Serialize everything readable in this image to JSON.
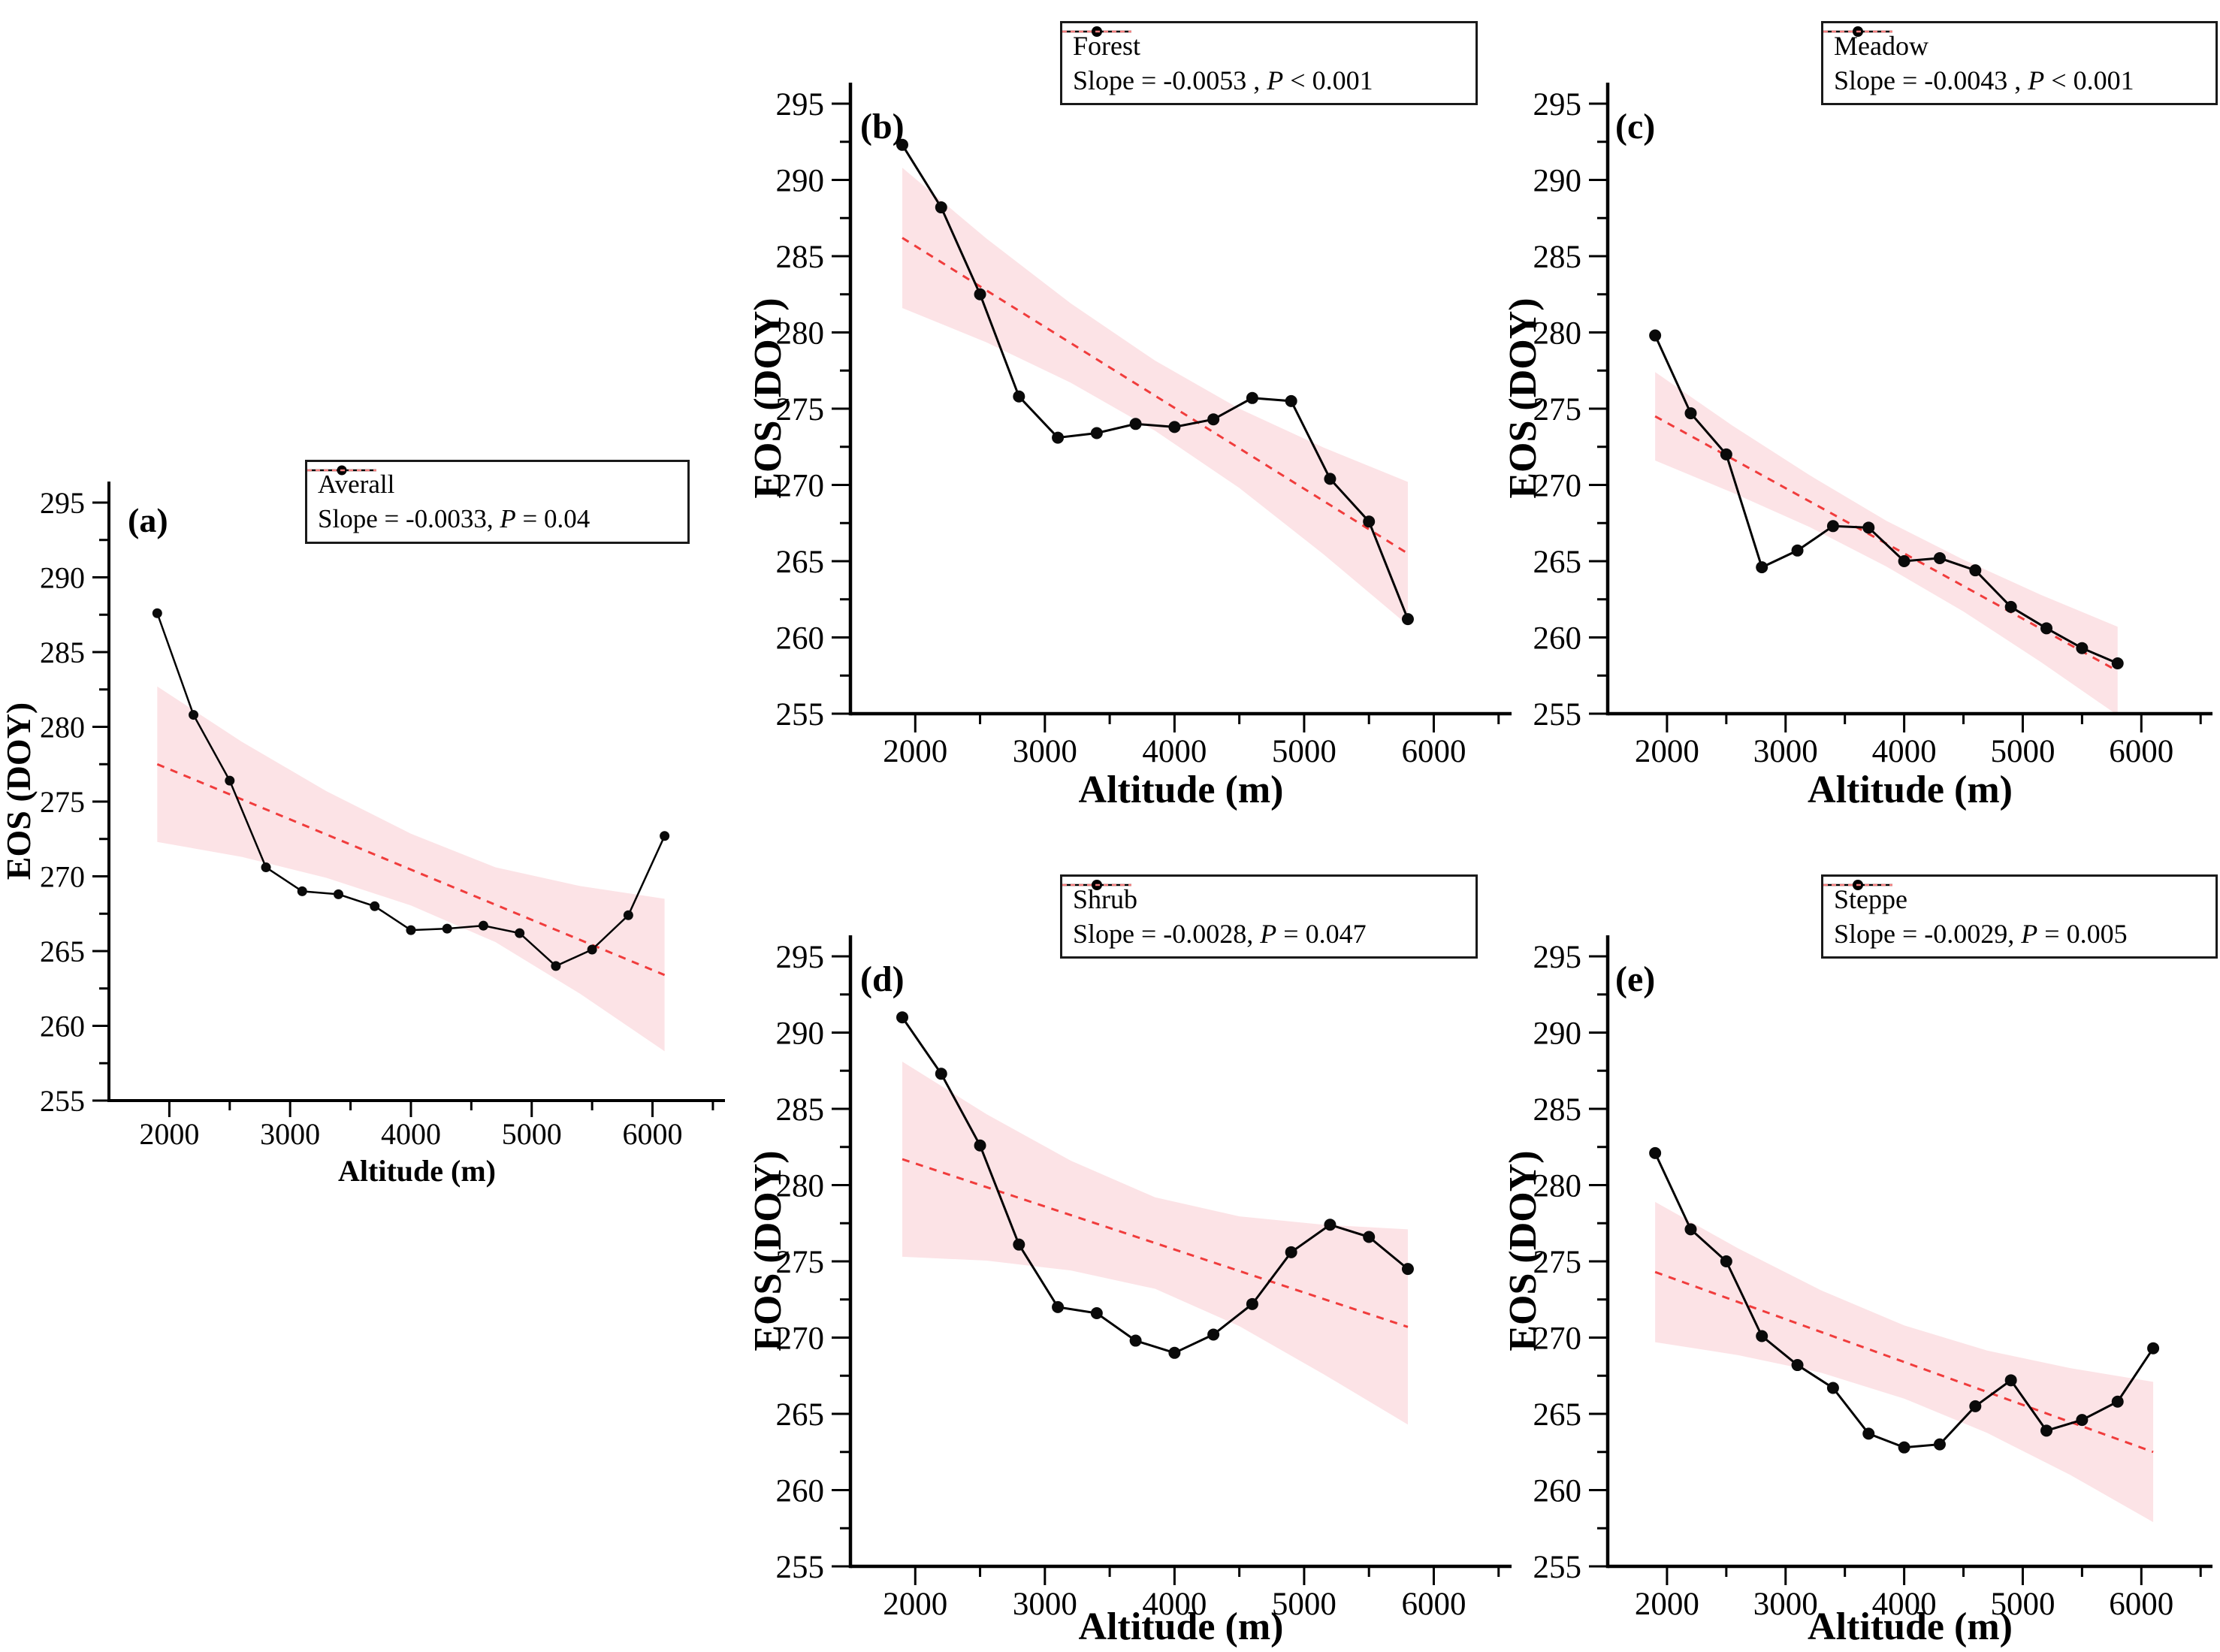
{
  "figure": {
    "background": "#ffffff",
    "series_color": "#000000",
    "trend_color": "#f03c3c",
    "band_color": "#fce3e6",
    "x_range": [
      1500,
      6600
    ],
    "y_range": [
      255,
      295
    ],
    "x_major_ticks": [
      2000,
      3000,
      4000,
      5000,
      6000
    ],
    "x_minor_ticks": [
      2500,
      3500,
      4500,
      5500,
      6500
    ],
    "y_major_ticks": [
      255,
      260,
      265,
      270,
      275,
      280,
      285,
      290,
      295
    ],
    "y_minor_ticks": [
      257.5,
      262.5,
      267.5,
      272.5,
      277.5,
      282.5,
      287.5,
      292.5
    ],
    "grid": false,
    "legend_position": "top-right"
  },
  "chart_data": [
    {
      "type": "line",
      "panel_label": "(a)",
      "series_name": "Averall",
      "legend_slope_prefix": "Slope = -0.0033, ",
      "legend_p": "P",
      "legend_p_suffix": " = 0.04",
      "xlabel": "Altitude (m)",
      "ylabel": "EOS (DOY)",
      "x": [
        1900,
        2200,
        2500,
        2800,
        3100,
        3400,
        3700,
        4000,
        4300,
        4600,
        4900,
        5200,
        5500,
        5800,
        6100
      ],
      "y": [
        287.6,
        280.8,
        276.4,
        270.6,
        269.0,
        268.8,
        268.0,
        266.4,
        266.5,
        266.7,
        266.2,
        264.0,
        265.1,
        267.4,
        272.7
      ],
      "trend": {
        "x": [
          1900,
          6100
        ],
        "y": [
          277.5,
          263.4
        ]
      },
      "band": {
        "x": [
          1900,
          2600,
          3300,
          4000,
          4700,
          5400,
          6100
        ],
        "upper": [
          282.7,
          279.0,
          275.7,
          272.85,
          270.6,
          269.35,
          268.5
        ],
        "lower": [
          272.3,
          271.3,
          269.9,
          268.05,
          265.6,
          262.15,
          258.3
        ]
      }
    },
    {
      "type": "line",
      "panel_label": "(b)",
      "series_name": "Forest",
      "legend_slope_prefix": "Slope = -0.0053 , ",
      "legend_p": "P",
      "legend_p_suffix": " < 0.001",
      "xlabel": "Altitude (m)",
      "ylabel": "EOS (DOY)",
      "x": [
        1900,
        2200,
        2500,
        2800,
        3100,
        3400,
        3700,
        4000,
        4300,
        4600,
        4900,
        5200,
        5500,
        5800
      ],
      "y": [
        292.3,
        288.2,
        282.5,
        275.8,
        273.1,
        273.4,
        274.0,
        273.8,
        274.3,
        275.7,
        275.5,
        270.4,
        267.6,
        261.2
      ],
      "trend": {
        "x": [
          1900,
          5800
        ],
        "y": [
          286.2,
          265.5
        ]
      },
      "band": {
        "x": [
          1900,
          2550,
          3200,
          3850,
          4500,
          5150,
          5800
        ],
        "upper": [
          290.8,
          286.15,
          281.9,
          278.15,
          275.0,
          272.45,
          270.2
        ],
        "lower": [
          281.6,
          279.35,
          276.7,
          273.55,
          269.8,
          265.45,
          260.8
        ]
      }
    },
    {
      "type": "line",
      "panel_label": "(c)",
      "series_name": "Meadow",
      "legend_slope_prefix": "Slope = -0.0043 , ",
      "legend_p": "P",
      "legend_p_suffix": " < 0.001",
      "xlabel": "Altitude (m)",
      "ylabel": "EOS (DOY)",
      "x": [
        1900,
        2200,
        2500,
        2800,
        3100,
        3400,
        3700,
        4000,
        4300,
        4600,
        4900,
        5200,
        5500,
        5800
      ],
      "y": [
        279.8,
        274.7,
        272.0,
        264.6,
        265.7,
        267.3,
        267.2,
        265.0,
        265.2,
        264.4,
        262.0,
        260.6,
        259.3,
        258.3
      ],
      "trend": {
        "x": [
          1900,
          5800
        ],
        "y": [
          274.5,
          257.8
        ]
      },
      "band": {
        "x": [
          1900,
          2550,
          3200,
          3850,
          4500,
          5150,
          5800
        ],
        "upper": [
          277.4,
          273.9,
          270.65,
          267.65,
          265.1,
          262.8,
          260.7
        ],
        "lower": [
          271.6,
          269.5,
          267.25,
          264.65,
          261.7,
          258.4,
          254.9
        ]
      }
    },
    {
      "type": "line",
      "panel_label": "(d)",
      "series_name": "Shrub",
      "legend_slope_prefix": "Slope = -0.0028, ",
      "legend_p": "P",
      "legend_p_suffix": " = 0.047",
      "xlabel": "Altitude (m)",
      "ylabel": "EOS (DOY)",
      "x": [
        1900,
        2200,
        2500,
        2800,
        3100,
        3400,
        3700,
        4000,
        4300,
        4600,
        4900,
        5200,
        5500,
        5800
      ],
      "y": [
        291.0,
        287.3,
        282.6,
        276.1,
        272.0,
        271.6,
        269.8,
        269.0,
        270.2,
        272.2,
        275.6,
        277.4,
        276.6,
        274.5
      ],
      "trend": {
        "x": [
          1900,
          5800
        ],
        "y": [
          281.7,
          270.7
        ]
      },
      "band": {
        "x": [
          1900,
          2550,
          3200,
          3850,
          4500,
          5150,
          5800
        ],
        "upper": [
          288.1,
          284.65,
          281.6,
          279.2,
          277.95,
          277.4,
          277.1
        ],
        "lower": [
          275.3,
          275.05,
          274.4,
          273.2,
          270.75,
          267.6,
          264.3
        ]
      }
    },
    {
      "type": "line",
      "panel_label": "(e)",
      "series_name": "Steppe",
      "legend_slope_prefix": "Slope = -0.0029, ",
      "legend_p": "P",
      "legend_p_suffix": " = 0.005",
      "xlabel": "Altitude (m)",
      "ylabel": "EOS (DOY)",
      "x": [
        1900,
        2200,
        2500,
        2800,
        3100,
        3400,
        3700,
        4000,
        4300,
        4600,
        4900,
        5200,
        5500,
        5800,
        6100
      ],
      "y": [
        282.1,
        277.1,
        275.0,
        270.1,
        268.2,
        266.7,
        263.7,
        262.8,
        263.0,
        265.5,
        267.2,
        263.9,
        264.6,
        265.8,
        269.3
      ],
      "trend": {
        "x": [
          1900,
          6100
        ],
        "y": [
          274.3,
          262.5
        ]
      },
      "band": {
        "x": [
          1900,
          2600,
          3300,
          4000,
          4700,
          5400,
          6100
        ],
        "upper": [
          278.9,
          275.85,
          273.1,
          270.8,
          269.15,
          268.0,
          267.1
        ],
        "lower": [
          269.7,
          268.85,
          267.7,
          266.0,
          263.75,
          261.0,
          257.9
        ]
      }
    }
  ]
}
